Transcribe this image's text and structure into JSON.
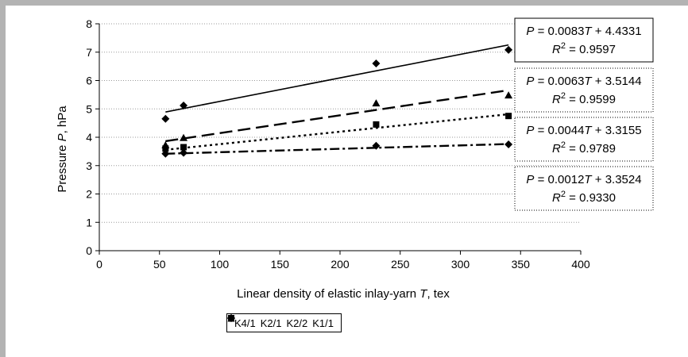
{
  "chart_data": {
    "type": "scatter",
    "xlabel_prefix": "Linear density of elastic inlay-yarn ",
    "xlabel_var": "T",
    "xlabel_suffix": ", tex",
    "ylabel_prefix": "Pressure ",
    "ylabel_var": "P",
    "ylabel_suffix": ", hPa",
    "xlim": [
      0,
      400
    ],
    "ylim": [
      0,
      8
    ],
    "xticks": [
      0,
      50,
      100,
      150,
      200,
      250,
      300,
      350,
      400
    ],
    "yticks": [
      0,
      1,
      2,
      3,
      4,
      5,
      6,
      7,
      8
    ],
    "grid": "horizontal dotted",
    "legend_position": "bottom",
    "series": [
      {
        "name": "K4/1",
        "marker": "diamond",
        "line_style": "solid",
        "points": [
          [
            55,
            4.65
          ],
          [
            70,
            5.12
          ],
          [
            230,
            6.6
          ],
          [
            340,
            7.08
          ]
        ],
        "fit": {
          "slope": 0.0083,
          "intercept": 4.4331,
          "x_range": [
            55,
            340
          ]
        },
        "equation": {
          "P_eq": " = 0.0083",
          "T_var": "T",
          "rest": " + 4.4331",
          "R2_label": "R",
          "R2_exp": "2",
          "R2_val": " = 0.9597"
        }
      },
      {
        "name": "K2/1",
        "marker": "square",
        "line_style": "dotted",
        "points": [
          [
            55,
            3.6
          ],
          [
            70,
            3.65
          ],
          [
            230,
            4.45
          ],
          [
            340,
            4.75
          ]
        ],
        "fit": {
          "slope": 0.0044,
          "intercept": 3.3155,
          "x_range": [
            55,
            340
          ]
        },
        "equation": {
          "P_eq": " = 0.0044",
          "T_var": "T",
          "rest": " + 3.3155",
          "R2_label": "R",
          "R2_exp": "2",
          "R2_val": " = 0.9789"
        }
      },
      {
        "name": "K2/2",
        "marker": "triangle",
        "line_style": "dashed",
        "points": [
          [
            55,
            3.72
          ],
          [
            70,
            3.98
          ],
          [
            230,
            5.2
          ],
          [
            340,
            5.48
          ]
        ],
        "fit": {
          "slope": 0.0063,
          "intercept": 3.5144,
          "x_range": [
            55,
            340
          ]
        },
        "equation": {
          "P_eq": " = 0.0063",
          "T_var": "T",
          "rest": " + 3.5144",
          "R2_label": "R",
          "R2_exp": "2",
          "R2_val": " = 0.9599"
        }
      },
      {
        "name": "K1/1",
        "marker": "diamond",
        "line_style": "dash-dot",
        "points": [
          [
            55,
            3.42
          ],
          [
            70,
            3.45
          ],
          [
            230,
            3.7
          ],
          [
            340,
            3.75
          ]
        ],
        "fit": {
          "slope": 0.0012,
          "intercept": 3.3524,
          "x_range": [
            55,
            340
          ]
        },
        "equation": {
          "P_eq": " = 0.0012",
          "T_var": "T",
          "rest": " + 3.3524",
          "R2_label": "R",
          "R2_exp": "2",
          "R2_val": " = 0.9330"
        }
      }
    ],
    "equation_order": [
      "K4/1",
      "K2/2",
      "K2/1",
      "K1/1"
    ],
    "equation_var": "P"
  }
}
